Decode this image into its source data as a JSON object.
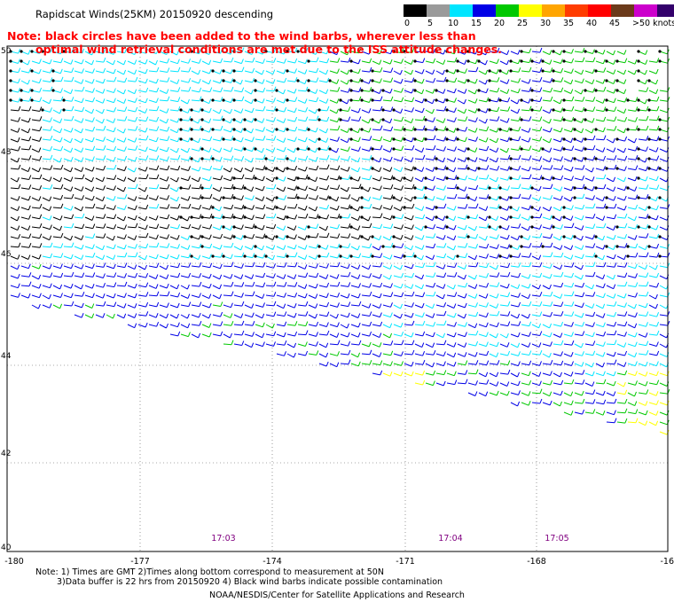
{
  "title": "Rapidscat Winds(25KM) 20150920 descending",
  "note": {
    "line1": "Note: black circles have been added to the wind barbs, wherever less than",
    "line2": "optimal wind retrieval conditions are met due to the ISS attitude changes."
  },
  "colorbar": {
    "labels": [
      "0",
      "5",
      "10",
      "15",
      "20",
      "25",
      "30",
      "35",
      "40",
      "45",
      ">50 knots"
    ],
    "colors": [
      "#000000",
      "#9a9a9a",
      "#00e5ff",
      "#0000e6",
      "#00c800",
      "#ffff00",
      "#ffa500",
      "#ff3c00",
      "#ff0000",
      "#6b3a1a",
      "#cc00cc",
      "#33006b"
    ]
  },
  "map": {
    "lat_ticks": [
      "50",
      "48",
      "46",
      "44",
      "42",
      "40"
    ],
    "lon_ticks": [
      "-180",
      "-177",
      "-174",
      "-171",
      "-168",
      "-16"
    ],
    "time_labels": [
      "17:03",
      "17:04",
      "17:05"
    ],
    "time_label_color": "#800080"
  },
  "footer": {
    "notes_line1": "Note: 1) Times are GMT 2)Times along bottom correspond to measurement at 50N",
    "notes_line2": "3)Data buffer is 22 hrs from 20150920 4) Black wind barbs indicate possible contamination",
    "credit": "NOAA/NESDIS/Center for Satellite Applications and Research"
  }
}
